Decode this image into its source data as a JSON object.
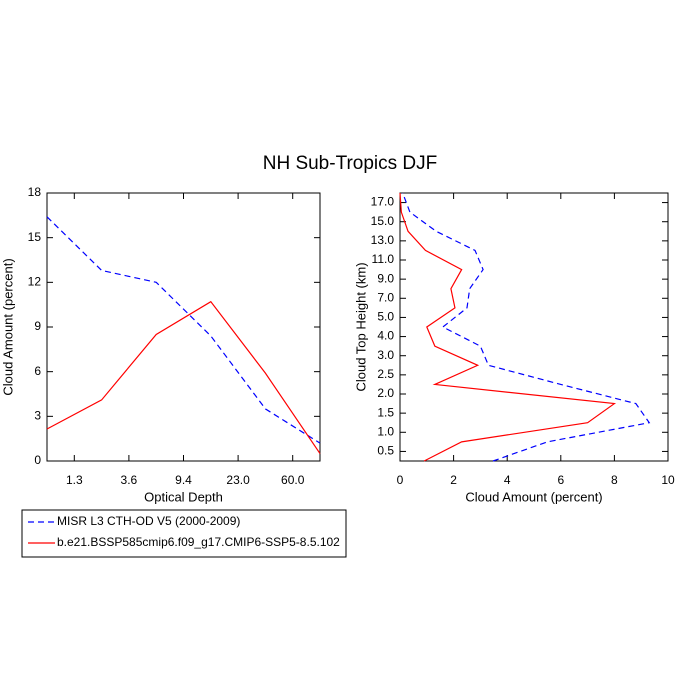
{
  "title": "NH Sub-Tropics DJF",
  "chart_data": [
    {
      "type": "line",
      "xlabel": "Optical Depth",
      "ylabel": "Cloud Amount (percent)",
      "x": [
        0,
        1,
        2,
        3,
        4,
        5
      ],
      "xlim": [
        0,
        5
      ],
      "xticks": [
        {
          "value": 0.5,
          "label": "1.3"
        },
        {
          "value": 1.5,
          "label": "3.6"
        },
        {
          "value": 2.5,
          "label": "9.4"
        },
        {
          "value": 3.5,
          "label": "23.0"
        },
        {
          "value": 4.5,
          "label": "60.0"
        }
      ],
      "ylim": [
        0,
        18
      ],
      "yticks": [
        0,
        3,
        6,
        9,
        12,
        15,
        18
      ],
      "series": [
        {
          "name": "MISR L3 CTH-OD V5 (2000-2009)",
          "color": "#0000ff",
          "dash": true,
          "values": [
            16.4,
            12.8,
            12.0,
            8.4,
            3.5,
            1.2
          ]
        },
        {
          "name": "b.e21.BSSP585cmip6.f09_g17.CMIP6-SSP5-8.5.102",
          "color": "#ff0000",
          "dash": false,
          "values": [
            2.15,
            4.1,
            8.5,
            10.7,
            5.9,
            0.5
          ]
        }
      ]
    },
    {
      "type": "line",
      "xlabel": "Cloud Amount (percent)",
      "ylabel": "Cloud Top Height (km)",
      "y": [
        0,
        1,
        2,
        3,
        4,
        5,
        6,
        7,
        8,
        9,
        10,
        11,
        12,
        13,
        14
      ],
      "ylim": [
        0,
        14
      ],
      "yticks": [
        0.5,
        {
          "value": 1.5,
          "label": "1.0"
        },
        {
          "value": 2.5,
          "label": "1.5"
        },
        {
          "value": 3.5,
          "label": "2.0"
        },
        {
          "value": 4.5,
          "label": "2.5"
        },
        {
          "value": 5.5,
          "label": "3.0"
        },
        {
          "value": 6.5,
          "label": "4.0"
        },
        {
          "value": 7.5,
          "label": "5.0"
        },
        {
          "value": 8.5,
          "label": "7.0"
        },
        {
          "value": 9.5,
          "label": "9.0"
        },
        {
          "value": 10.5,
          "label": "11.0"
        },
        {
          "value": 11.5,
          "label": "13.0"
        },
        {
          "value": 12.5,
          "label": "15.0"
        },
        {
          "value": 13.5,
          "label": "17.0"
        }
      ],
      "xlim": [
        0,
        10
      ],
      "xticks": [
        0,
        2,
        4,
        6,
        8,
        10
      ],
      "series": [
        {
          "color": "#0000ff",
          "dash": true,
          "values": [
            3.47,
            5.5,
            9.3,
            8.8,
            6.0,
            3.3,
            3.0,
            1.6,
            2.5,
            2.6,
            3.1,
            2.8,
            1.35,
            0.37,
            0.1
          ]
        },
        {
          "color": "#ff0000",
          "dash": false,
          "values": [
            0.9,
            2.3,
            7.0,
            8.0,
            1.3,
            2.9,
            1.3,
            1.0,
            2.05,
            1.9,
            2.3,
            0.95,
            0.3,
            0.05,
            0.0
          ]
        }
      ]
    }
  ]
}
